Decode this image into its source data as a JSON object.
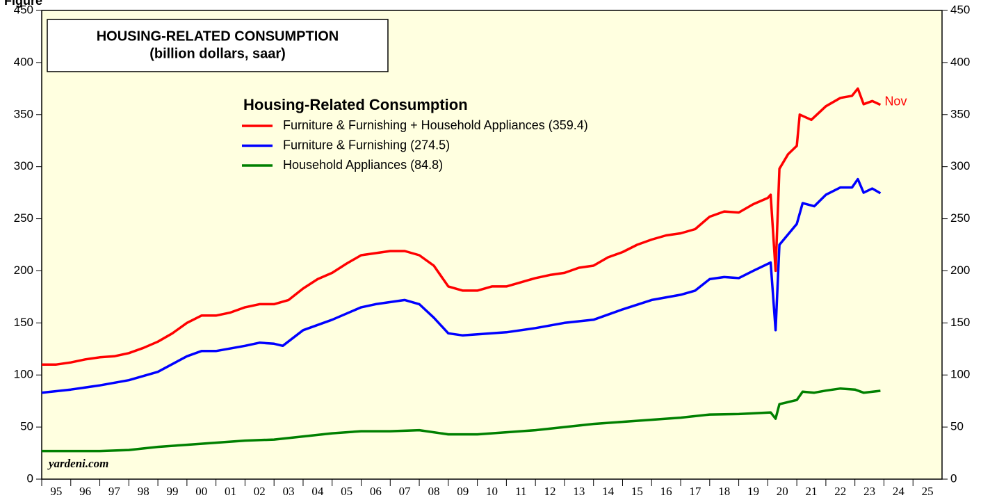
{
  "chart_data": {
    "type": "line",
    "figure_label": "Figure",
    "title": "HOUSING-RELATED CONSUMPTION",
    "subtitle": "(billion dollars, saar)",
    "legend_title": "Housing-Related Consumption",
    "source": "yardeni.com",
    "annotation": "Nov",
    "background": "#ffffe0",
    "xlim": [
      1995,
      2026
    ],
    "xticks": [
      {
        "value": 1995,
        "label": "95"
      },
      {
        "value": 1996,
        "label": "96"
      },
      {
        "value": 1997,
        "label": "97"
      },
      {
        "value": 1998,
        "label": "98"
      },
      {
        "value": 1999,
        "label": "99"
      },
      {
        "value": 2000,
        "label": "00"
      },
      {
        "value": 2001,
        "label": "01"
      },
      {
        "value": 2002,
        "label": "02"
      },
      {
        "value": 2003,
        "label": "03"
      },
      {
        "value": 2004,
        "label": "04"
      },
      {
        "value": 2005,
        "label": "05"
      },
      {
        "value": 2006,
        "label": "06"
      },
      {
        "value": 2007,
        "label": "07"
      },
      {
        "value": 2008,
        "label": "08"
      },
      {
        "value": 2009,
        "label": "09"
      },
      {
        "value": 2010,
        "label": "10"
      },
      {
        "value": 2011,
        "label": "11"
      },
      {
        "value": 2012,
        "label": "12"
      },
      {
        "value": 2013,
        "label": "13"
      },
      {
        "value": 2014,
        "label": "14"
      },
      {
        "value": 2015,
        "label": "15"
      },
      {
        "value": 2016,
        "label": "16"
      },
      {
        "value": 2017,
        "label": "17"
      },
      {
        "value": 2018,
        "label": "18"
      },
      {
        "value": 2019,
        "label": "19"
      },
      {
        "value": 2020,
        "label": "20"
      },
      {
        "value": 2021,
        "label": "21"
      },
      {
        "value": 2022,
        "label": "22"
      },
      {
        "value": 2023,
        "label": "23"
      },
      {
        "value": 2024,
        "label": "24"
      },
      {
        "value": 2025,
        "label": "25"
      }
    ],
    "ylim": [
      0,
      450
    ],
    "yticks": [
      0,
      50,
      100,
      150,
      200,
      250,
      300,
      350,
      400,
      450
    ],
    "series": [
      {
        "name": "Furniture & Furnishing + Household Appliances (359.4)",
        "color": "#ff0000",
        "x": [
          1995.0,
          1995.5,
          1996.0,
          1996.5,
          1997.0,
          1997.5,
          1998.0,
          1998.5,
          1999.0,
          1999.5,
          2000.0,
          2000.5,
          2001.0,
          2001.5,
          2002.0,
          2002.5,
          2003.0,
          2003.5,
          2004.0,
          2004.5,
          2005.0,
          2005.5,
          2006.0,
          2006.5,
          2007.0,
          2007.5,
          2008.0,
          2008.5,
          2009.0,
          2009.5,
          2010.0,
          2010.5,
          2011.0,
          2011.5,
          2012.0,
          2012.5,
          2013.0,
          2013.5,
          2014.0,
          2014.5,
          2015.0,
          2015.5,
          2016.0,
          2016.5,
          2017.0,
          2017.5,
          2018.0,
          2018.5,
          2019.0,
          2019.5,
          2020.0,
          2020.1,
          2020.27,
          2020.4,
          2020.7,
          2021.0,
          2021.1,
          2021.5,
          2022.0,
          2022.5,
          2022.9,
          2023.1,
          2023.3,
          2023.6,
          2023.88
        ],
        "values": [
          110,
          110,
          112,
          115,
          117,
          118,
          121,
          126,
          132,
          140,
          150,
          157,
          157,
          160,
          165,
          168,
          168,
          172,
          183,
          192,
          198,
          207,
          215,
          217,
          219,
          219,
          215,
          205,
          185,
          181,
          181,
          185,
          185,
          189,
          193,
          196,
          198,
          203,
          205,
          213,
          218,
          225,
          230,
          234,
          236,
          240,
          252,
          257,
          256,
          264,
          270,
          273,
          200,
          298,
          312,
          320,
          350,
          345,
          358,
          366,
          368,
          375,
          360,
          363,
          359.4
        ]
      },
      {
        "name": "Furniture & Furnishing (274.5)",
        "color": "#0000ff",
        "x": [
          1995.0,
          1996.0,
          1997.0,
          1998.0,
          1999.0,
          2000.0,
          2000.5,
          2001.0,
          2002.0,
          2002.5,
          2003.0,
          2003.3,
          2004.0,
          2005.0,
          2006.0,
          2006.5,
          2007.0,
          2007.5,
          2008.0,
          2008.5,
          2009.0,
          2009.5,
          2010.0,
          2011.0,
          2012.0,
          2013.0,
          2014.0,
          2015.0,
          2016.0,
          2017.0,
          2017.5,
          2018.0,
          2018.5,
          2019.0,
          2019.5,
          2020.1,
          2020.27,
          2020.4,
          2021.0,
          2021.2,
          2021.6,
          2022.0,
          2022.5,
          2022.9,
          2023.1,
          2023.3,
          2023.6,
          2023.88
        ],
        "values": [
          83,
          86,
          90,
          95,
          103,
          118,
          123,
          123,
          128,
          131,
          130,
          128,
          143,
          153,
          165,
          168,
          170,
          172,
          168,
          155,
          140,
          138,
          139,
          141,
          145,
          150,
          153,
          163,
          172,
          177,
          181,
          192,
          194,
          193,
          200,
          208,
          143,
          225,
          245,
          265,
          262,
          273,
          280,
          280,
          288,
          275,
          279,
          274.5
        ]
      },
      {
        "name": "Household Appliances (84.8)",
        "color": "#008000",
        "x": [
          1995.0,
          1997.0,
          1998.0,
          1999.0,
          2000.0,
          2001.0,
          2002.0,
          2003.0,
          2004.0,
          2005.0,
          2006.0,
          2007.0,
          2008.0,
          2009.0,
          2010.0,
          2011.0,
          2012.0,
          2013.0,
          2014.0,
          2015.0,
          2016.0,
          2017.0,
          2018.0,
          2019.0,
          2020.1,
          2020.27,
          2020.4,
          2021.0,
          2021.2,
          2021.6,
          2022.0,
          2022.5,
          2023.0,
          2023.3,
          2023.88
        ],
        "values": [
          27,
          27,
          28,
          31,
          33,
          35,
          37,
          38,
          41,
          44,
          46,
          46,
          47,
          43,
          43,
          45,
          47,
          50,
          53,
          55,
          57,
          59,
          62,
          62.5,
          64,
          58,
          72,
          76,
          84,
          83,
          85,
          87,
          86,
          83,
          84.8
        ]
      }
    ]
  }
}
